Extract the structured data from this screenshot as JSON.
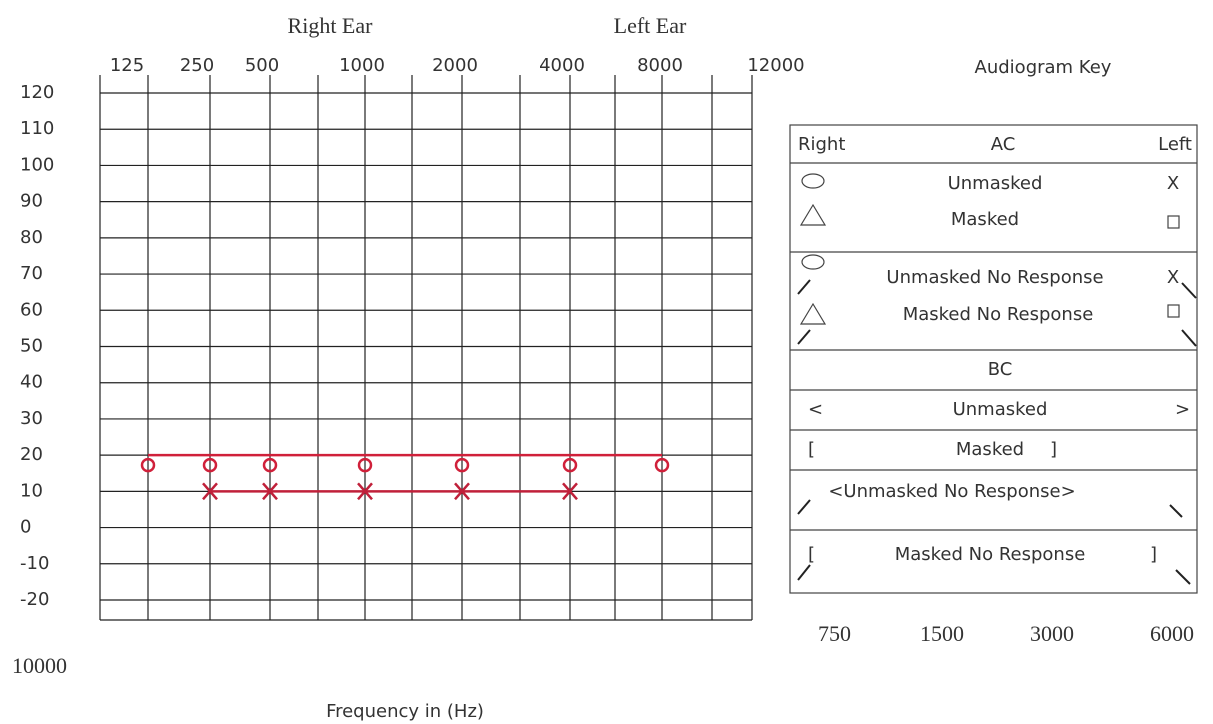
{
  "chart_data": {
    "type": "line",
    "ear_labels": [
      "Right Ear",
      "Left Ear"
    ],
    "categories": [
      "125",
      "250",
      "500",
      "1000",
      "2000",
      "4000",
      "8000",
      "12000"
    ],
    "series": [
      {
        "name": "Right Ear",
        "color": "#d0203a",
        "marker": "circle",
        "values": [
          20,
          20,
          20,
          20,
          20,
          20,
          20,
          null
        ]
      },
      {
        "name": "Left Ear",
        "color": "#c0203a",
        "marker": "x",
        "values": [
          null,
          10,
          10,
          10,
          10,
          10,
          null,
          null
        ]
      }
    ],
    "ylim": [
      -20,
      120
    ],
    "yticks": [
      -20,
      -10,
      0,
      10,
      20,
      30,
      40,
      50,
      60,
      70,
      80,
      90,
      100,
      110,
      120
    ],
    "grid": true,
    "extra_frequencies": [
      "750",
      "1500",
      "3000",
      "6000"
    ],
    "extra_frequency_left": "10000",
    "x_label": "Frequency in (Hz)"
  },
  "key": {
    "title": "Audiogram Key",
    "ac_header": [
      "Right",
      "AC",
      "Left"
    ],
    "ac_rows": [
      {
        "label": "Unmasked",
        "left": "X"
      },
      {
        "label": "Masked"
      },
      {
        "label": "Unmasked No Response",
        "left": "X"
      },
      {
        "label": "Masked No Response"
      }
    ],
    "bc_header": "BC",
    "bc_rows": [
      {
        "right": "<",
        "label": "Unmasked",
        "left": ">"
      },
      {
        "right": "[",
        "label": "Masked",
        "left": "]"
      },
      {
        "label": "<Unmasked No Response>"
      },
      {
        "right": "[",
        "label": "Masked No Response",
        "left": "]"
      }
    ]
  }
}
